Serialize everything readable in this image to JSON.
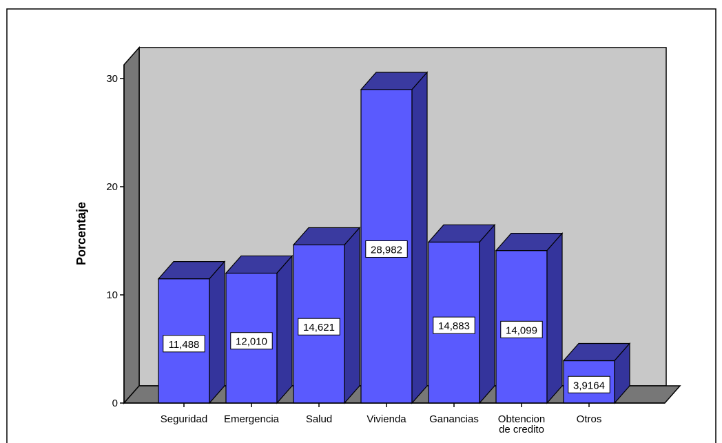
{
  "chart_data": {
    "type": "bar",
    "title": "",
    "xlabel": "",
    "ylabel": "Porcentaje",
    "ylim": [
      0,
      30
    ],
    "yticks": [
      "0",
      "10",
      "20",
      "30"
    ],
    "categories": [
      "Seguridad",
      "Emergencia",
      "Salud",
      "Vivienda",
      "Ganancias",
      "Obtencion de credito",
      "Otros"
    ],
    "values": [
      11.488,
      12.01,
      14.621,
      28.982,
      14.883,
      14.099,
      3.9164
    ],
    "value_labels": [
      "11,488",
      "12,010",
      "14,621",
      "28,982",
      "14,883",
      "14,099",
      "3,9164"
    ],
    "style": "3d",
    "grid": false,
    "legend": "none",
    "colors": {
      "bar_front": "#5a5afe",
      "bar_top": "#3a3aa0",
      "bar_side": "#34349c",
      "bar_outline": "#000000",
      "back_wall": "#c8c8c8",
      "side_wall": "#777777",
      "floor": "#777777"
    }
  }
}
